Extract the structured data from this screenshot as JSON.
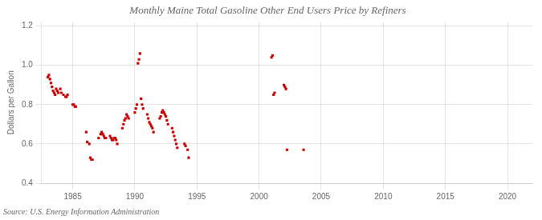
{
  "chart_data": {
    "type": "scatter",
    "title": "Monthly Maine Total Gasoline Other End Users Price by Refiners",
    "ylabel": "Dollars per Gallon",
    "source": "Source: U.S. Energy Information Administration",
    "color": "#cc0000",
    "marker": "square",
    "grid": true,
    "xlim": [
      1982.5,
      2022
    ],
    "ylim": [
      0.4,
      1.22
    ],
    "xticks": [
      1985,
      1990,
      1995,
      2000,
      2005,
      2010,
      2015,
      2020
    ],
    "yticks": [
      0.4,
      0.6,
      0.8,
      {
        "value": 1.0,
        "label": "1.0"
      },
      1.2
    ],
    "x": [
      1983.0,
      1983.083,
      1983.167,
      1983.25,
      1983.333,
      1983.417,
      1983.5,
      1983.583,
      1983.667,
      1983.75,
      1983.833,
      1984.0,
      1984.083,
      1984.25,
      1984.417,
      1984.5,
      1984.583,
      1985.0,
      1985.083,
      1985.167,
      1985.25,
      1986.083,
      1986.167,
      1986.333,
      1986.417,
      1986.5,
      1986.583,
      1987.083,
      1987.25,
      1987.333,
      1987.417,
      1987.5,
      1987.583,
      1987.667,
      1988.0,
      1988.083,
      1988.167,
      1988.25,
      1988.333,
      1988.417,
      1988.5,
      1988.583,
      1989.0,
      1989.083,
      1989.167,
      1989.25,
      1989.333,
      1989.417,
      1989.5,
      1990.0,
      1990.083,
      1990.167,
      1990.25,
      1990.333,
      1990.417,
      1990.5,
      1990.583,
      1990.667,
      1991.0,
      1991.083,
      1991.167,
      1991.25,
      1991.333,
      1991.417,
      1991.5,
      1992.0,
      1992.083,
      1992.167,
      1992.25,
      1992.333,
      1992.417,
      1992.5,
      1992.583,
      1992.667,
      1993.0,
      1993.083,
      1993.167,
      1993.25,
      1993.333,
      1993.417,
      1994.0,
      1994.083,
      1994.25,
      1994.333,
      2001.0,
      2001.083,
      2001.167,
      2001.25,
      2002.0,
      2002.083,
      2002.167,
      2002.25,
      2003.583
    ],
    "values": [
      0.94,
      0.95,
      0.93,
      0.91,
      0.89,
      0.87,
      0.86,
      0.85,
      0.88,
      0.87,
      0.86,
      0.88,
      0.86,
      0.85,
      0.84,
      0.84,
      0.85,
      0.8,
      0.8,
      0.79,
      0.79,
      0.66,
      0.61,
      0.6,
      0.53,
      0.52,
      0.52,
      0.63,
      0.65,
      0.66,
      0.65,
      0.64,
      0.63,
      0.63,
      0.64,
      0.63,
      0.62,
      0.62,
      0.63,
      0.63,
      0.62,
      0.6,
      0.68,
      0.7,
      0.72,
      0.73,
      0.75,
      0.74,
      0.73,
      0.76,
      0.78,
      0.8,
      1.01,
      1.03,
      1.06,
      0.83,
      0.8,
      0.78,
      0.75,
      0.73,
      0.71,
      0.7,
      0.69,
      0.68,
      0.66,
      0.73,
      0.74,
      0.76,
      0.77,
      0.76,
      0.75,
      0.74,
      0.72,
      0.7,
      0.68,
      0.66,
      0.64,
      0.62,
      0.6,
      0.58,
      0.6,
      0.59,
      0.57,
      0.53,
      1.04,
      1.05,
      0.85,
      0.86,
      0.9,
      0.89,
      0.88,
      0.57,
      0.57
    ]
  }
}
